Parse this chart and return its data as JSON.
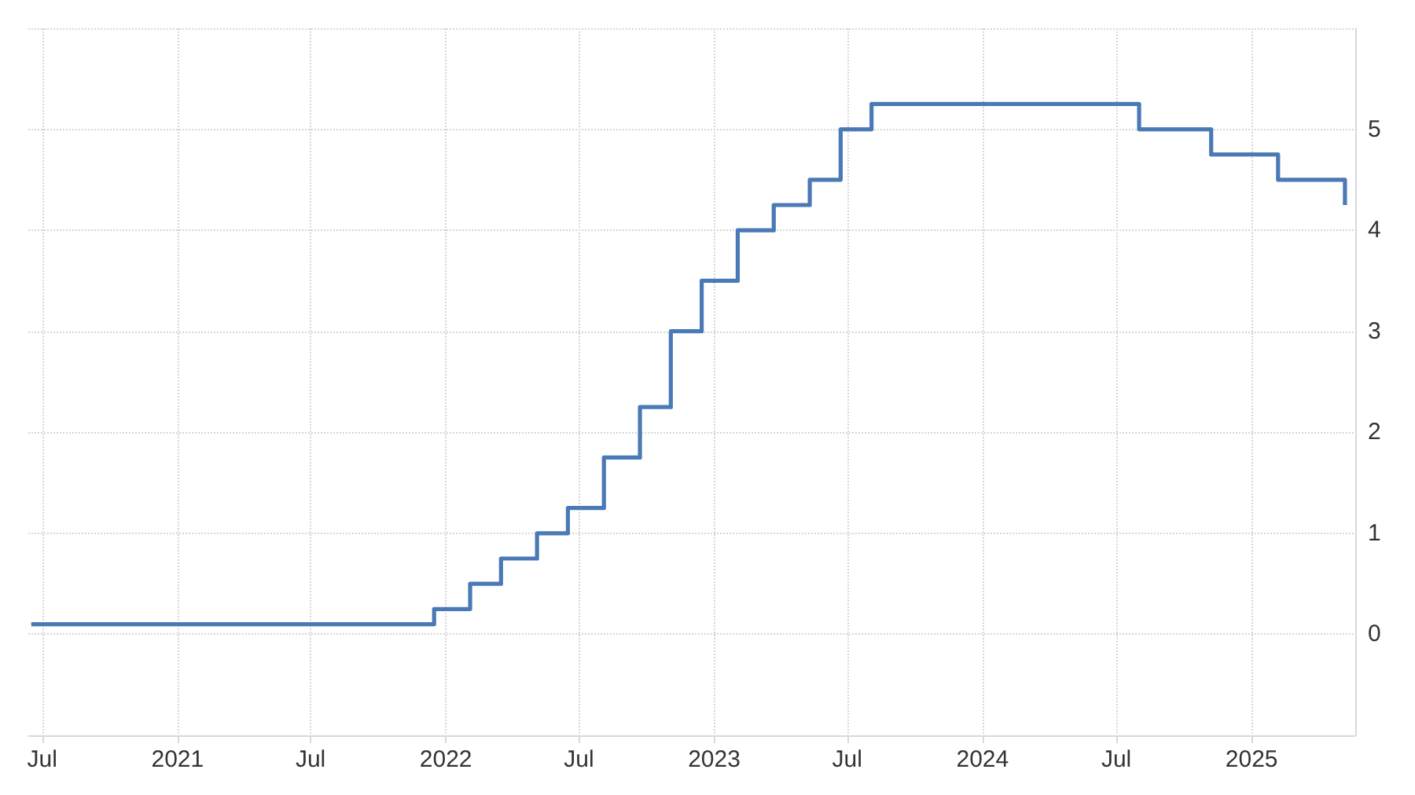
{
  "chart_data": {
    "type": "step",
    "x": [
      "2020-06-16",
      "2021-12-16",
      "2022-02-03",
      "2022-03-17",
      "2022-05-05",
      "2022-06-16",
      "2022-08-04",
      "2022-09-22",
      "2022-11-03",
      "2022-12-15",
      "2023-02-02",
      "2023-03-23",
      "2023-05-11",
      "2023-06-22",
      "2023-08-03",
      "2024-08-01",
      "2024-11-07",
      "2025-02-06",
      "2025-05-08"
    ],
    "series": [
      {
        "color": "#4a7ab5",
        "values": [
          0.1,
          0.25,
          0.5,
          0.75,
          1,
          1.25,
          1.75,
          2.25,
          3,
          3.5,
          4,
          4.25,
          4.5,
          5,
          5.25,
          5,
          4.75,
          4.5,
          4.25
        ]
      }
    ],
    "xlim": [
      "2020-06-12",
      "2025-05-22"
    ],
    "xticks": [
      {
        "value": "2020-07",
        "label": "Jul"
      },
      {
        "value": "2021",
        "label": "2021"
      },
      {
        "value": "2021-07",
        "label": "Jul"
      },
      {
        "value": "2022",
        "label": "2022"
      },
      {
        "value": "2022-07",
        "label": "Jul"
      },
      {
        "value": "2023",
        "label": "2023"
      },
      {
        "value": "2023-07",
        "label": "Jul"
      },
      {
        "value": "2024",
        "label": "2024"
      },
      {
        "value": "2024-07",
        "label": "Jul"
      },
      {
        "value": "2025",
        "label": "2025"
      }
    ],
    "ylim": [
      -1,
      6
    ],
    "yticks": [
      {
        "value": -1,
        "label": null
      },
      0,
      1,
      2,
      3,
      4,
      5,
      {
        "value": 6,
        "label": null
      }
    ],
    "grid": true,
    "line_style": "solid",
    "marker": "none"
  }
}
